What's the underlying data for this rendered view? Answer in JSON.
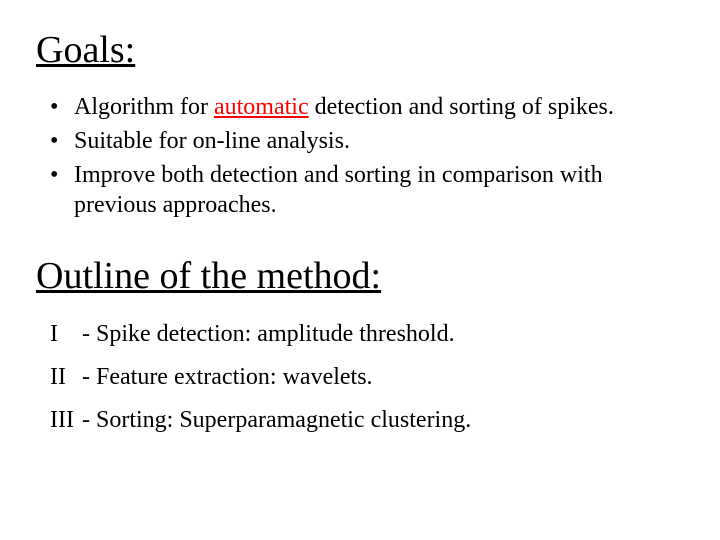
{
  "heading_goals": "Goals:",
  "bullets": {
    "b1_pre": "Algorithm for ",
    "b1_mid": "automatic",
    "b1_post": " detection and sorting of spikes.",
    "b2": "Suitable for on-line analysis.",
    "b3": "Improve both detection and sorting in comparison with previous approaches."
  },
  "heading_outline": "Outline of the method:",
  "steps": {
    "s1_pre": "I",
    "s1_mid": "  - Spike detection: amplitude threshold.",
    "s2_pre": "II",
    "s2_mid": " - Feature extraction: wavelets.",
    "s3_pre": "III",
    "s3_mid": " - Sorting: Superparamagnetic clustering."
  },
  "colors": {
    "text": "#000000",
    "highlight": "#ff0000",
    "background": "#ffffff"
  },
  "font": {
    "family": "Times New Roman",
    "heading_size_pt": 38,
    "body_size_pt": 24
  }
}
